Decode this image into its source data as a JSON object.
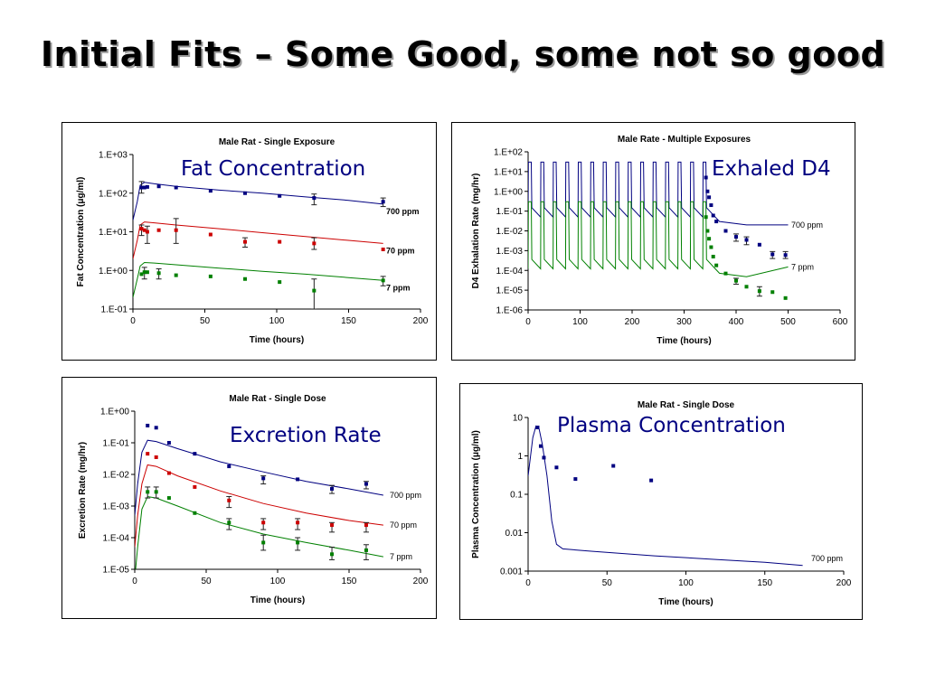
{
  "slide": {
    "title": "Initial Fits – Some Good, some not so good"
  },
  "overlays": {
    "fat": "Fat Concentration",
    "exhaled": "Exhaled D4",
    "excretion": "Excretion Rate",
    "plasma": "Plasma Concentration"
  },
  "chart_data": [
    {
      "id": "fat",
      "type": "scatter",
      "title": "Male Rat - Single Exposure",
      "xlabel": "Time (hours)",
      "ylabel": "Fat Concentration (μg/ml)",
      "xlim": [
        0,
        200
      ],
      "xticks": [
        0,
        50,
        100,
        150,
        200
      ],
      "ylog": true,
      "ylim": [
        0.1,
        1000
      ],
      "yticks": [
        0.1,
        1,
        10,
        100,
        1000
      ],
      "yticklabels": [
        "1.E-01",
        "1.E+00",
        "1.E+01",
        "1.E+02",
        "1.E+03"
      ],
      "series": [
        {
          "name": "700 ppm",
          "color": "#000080",
          "points": [
            [
              6,
              140
            ],
            [
              8,
              140
            ],
            [
              10,
              145
            ],
            [
              18,
              150
            ],
            [
              30,
              140
            ],
            [
              54,
              115
            ],
            [
              78,
              100
            ],
            [
              102,
              85
            ],
            [
              126,
              75
            ],
            [
              174,
              60
            ]
          ],
          "err": [
            [
              6,
              100,
              200
            ],
            [
              126,
              50,
              95
            ],
            [
              174,
              45,
              75
            ]
          ],
          "line": [
            [
              0,
              20
            ],
            [
              3,
              60
            ],
            [
              5,
              160
            ],
            [
              8,
              190
            ],
            [
              15,
              175
            ],
            [
              30,
              150
            ],
            [
              60,
              120
            ],
            [
              90,
              100
            ],
            [
              120,
              80
            ],
            [
              150,
              65
            ],
            [
              174,
              52
            ]
          ]
        },
        {
          "name": "70 ppm",
          "color": "#cc0000",
          "points": [
            [
              6,
              12
            ],
            [
              8,
              11
            ],
            [
              10,
              10
            ],
            [
              18,
              11
            ],
            [
              30,
              11
            ],
            [
              54,
              8.5
            ],
            [
              78,
              5.5
            ],
            [
              102,
              5.5
            ],
            [
              126,
              5
            ],
            [
              174,
              3.5
            ]
          ],
          "err": [
            [
              6,
              8,
              15
            ],
            [
              10,
              5,
              14
            ],
            [
              30,
              5,
              22
            ],
            [
              78,
              4,
              7
            ],
            [
              126,
              3.5,
              7
            ]
          ],
          "line": [
            [
              0,
              2
            ],
            [
              3,
              6
            ],
            [
              5,
              15
            ],
            [
              8,
              18
            ],
            [
              15,
              17
            ],
            [
              30,
              15
            ],
            [
              60,
              12
            ],
            [
              90,
              9.5
            ],
            [
              120,
              7.5
            ],
            [
              150,
              6
            ],
            [
              174,
              5
            ]
          ]
        },
        {
          "name": "7 ppm",
          "color": "#008000",
          "points": [
            [
              6,
              0.8
            ],
            [
              8,
              0.9
            ],
            [
              10,
              0.9
            ],
            [
              18,
              0.85
            ],
            [
              30,
              0.75
            ],
            [
              54,
              0.7
            ],
            [
              78,
              0.6
            ],
            [
              102,
              0.5
            ],
            [
              126,
              0.3
            ],
            [
              174,
              0.55
            ]
          ],
          "err": [
            [
              8,
              0.6,
              1.2
            ],
            [
              18,
              0.6,
              1.1
            ],
            [
              126,
              0.1,
              0.6
            ],
            [
              174,
              0.4,
              0.7
            ]
          ],
          "line": [
            [
              0,
              0.2
            ],
            [
              3,
              0.6
            ],
            [
              5,
              1.3
            ],
            [
              8,
              1.6
            ],
            [
              15,
              1.55
            ],
            [
              30,
              1.4
            ],
            [
              60,
              1.15
            ],
            [
              90,
              0.95
            ],
            [
              120,
              0.8
            ],
            [
              150,
              0.65
            ],
            [
              174,
              0.55
            ]
          ]
        }
      ]
    },
    {
      "id": "exhaled",
      "type": "scatter",
      "title": "Male Rate - Multiple Exposures",
      "xlabel": "Time (hours)",
      "ylabel": "D4 Exhalation Rate (mg/hr)",
      "xlim": [
        0,
        600
      ],
      "xticks": [
        0,
        100,
        200,
        300,
        400,
        500,
        600
      ],
      "ylog": true,
      "ylim": [
        1e-06,
        100
      ],
      "yticks": [
        1e-06,
        1e-05,
        0.0001,
        0.001,
        0.01,
        0.1,
        1,
        10,
        100
      ],
      "yticklabels": [
        "1.E-06",
        "1.E-05",
        "1.E-04",
        "1.E-03",
        "1.E-02",
        "1.E-01",
        "1.E+00",
        "1.E+01",
        "1.E+02"
      ],
      "pulses": {
        "start": 0,
        "period": 24,
        "duration": 6,
        "count": 15
      },
      "series": [
        {
          "name": "700 ppm",
          "color": "#000080",
          "low": 0.05,
          "high": 30,
          "tail_end": 0.02,
          "points": [
            [
              342,
              5
            ],
            [
              345,
              1
            ],
            [
              348,
              0.5
            ],
            [
              352,
              0.2
            ],
            [
              356,
              0.06
            ],
            [
              362,
              0.03
            ],
            [
              380,
              0.01
            ],
            [
              400,
              0.005
            ],
            [
              420,
              0.0035
            ],
            [
              445,
              0.002
            ],
            [
              470,
              0.00065
            ],
            [
              495,
              0.0006
            ]
          ],
          "err": [
            [
              400,
              0.003,
              0.007
            ],
            [
              420,
              0.002,
              0.005
            ],
            [
              470,
              0.0004,
              0.0009
            ],
            [
              495,
              0.0004,
              0.0009
            ]
          ]
        },
        {
          "name": "7 ppm",
          "color": "#008000",
          "low": 0.00012,
          "high": 0.3,
          "tail_end": 0.00015,
          "points": [
            [
              342,
              0.05
            ],
            [
              345,
              0.01
            ],
            [
              348,
              0.004
            ],
            [
              352,
              0.0015
            ],
            [
              356,
              0.0005
            ],
            [
              362,
              0.00018
            ],
            [
              380,
              7e-05
            ],
            [
              400,
              3e-05
            ],
            [
              420,
              1.5e-05
            ],
            [
              445,
              9e-06
            ],
            [
              470,
              8e-06
            ],
            [
              495,
              4e-06
            ]
          ],
          "err": [
            [
              400,
              2e-05,
              4e-05
            ],
            [
              445,
              5e-06,
              1.5e-05
            ]
          ]
        }
      ]
    },
    {
      "id": "excretion",
      "type": "scatter",
      "title": "Male Rat - Single Dose",
      "xlabel": "Time (hours)",
      "ylabel": "Excretion Rate (mg/hr)",
      "xlim": [
        0,
        200
      ],
      "xticks": [
        0,
        50,
        100,
        150,
        200
      ],
      "ylog": true,
      "ylim": [
        1e-05,
        1
      ],
      "yticks": [
        1e-05,
        0.0001,
        0.001,
        0.01,
        0.1,
        1
      ],
      "yticklabels": [
        "1.E-05",
        "1.E-04",
        "1.E-03",
        "1.E-02",
        "1.E-01",
        "1.E+00"
      ],
      "series": [
        {
          "name": "700 ppm",
          "color": "#000080",
          "points": [
            [
              9,
              0.35
            ],
            [
              15,
              0.3
            ],
            [
              24,
              0.1
            ],
            [
              42,
              0.045
            ],
            [
              66,
              0.018
            ],
            [
              90,
              0.0075
            ],
            [
              114,
              0.007
            ],
            [
              138,
              0.0035
            ],
            [
              162,
              0.005
            ]
          ],
          "err": [
            [
              90,
              0.005,
              0.009
            ],
            [
              138,
              0.0025,
              0.0045
            ],
            [
              162,
              0.0035,
              0.006
            ]
          ],
          "line": [
            [
              0,
              0.0005
            ],
            [
              2,
              0.005
            ],
            [
              5,
              0.05
            ],
            [
              9,
              0.12
            ],
            [
              15,
              0.11
            ],
            [
              30,
              0.065
            ],
            [
              60,
              0.025
            ],
            [
              90,
              0.012
            ],
            [
              120,
              0.006
            ],
            [
              150,
              0.0035
            ],
            [
              174,
              0.0022
            ]
          ]
        },
        {
          "name": "70 ppm",
          "color": "#cc0000",
          "points": [
            [
              9,
              0.045
            ],
            [
              15,
              0.035
            ],
            [
              24,
              0.011
            ],
            [
              42,
              0.004
            ],
            [
              66,
              0.0015
            ],
            [
              90,
              0.0003
            ],
            [
              114,
              0.0003
            ],
            [
              138,
              0.00025
            ],
            [
              162,
              0.00025
            ]
          ],
          "err": [
            [
              66,
              0.0009,
              0.002
            ],
            [
              90,
              0.00018,
              0.0004
            ],
            [
              114,
              0.00018,
              0.0004
            ],
            [
              138,
              0.00015,
              0.0003
            ],
            [
              162,
              0.00015,
              0.0003
            ]
          ],
          "line": [
            [
              0,
              5e-05
            ],
            [
              2,
              0.0005
            ],
            [
              5,
              0.005
            ],
            [
              9,
              0.02
            ],
            [
              15,
              0.018
            ],
            [
              30,
              0.009
            ],
            [
              60,
              0.003
            ],
            [
              90,
              0.0012
            ],
            [
              120,
              0.0006
            ],
            [
              150,
              0.00035
            ],
            [
              174,
              0.00025
            ]
          ]
        },
        {
          "name": "7 ppm",
          "color": "#008000",
          "points": [
            [
              9,
              0.0028
            ],
            [
              15,
              0.0028
            ],
            [
              24,
              0.0018
            ],
            [
              42,
              0.0006
            ],
            [
              66,
              0.0003
            ],
            [
              90,
              7e-05
            ],
            [
              114,
              7e-05
            ],
            [
              138,
              3e-05
            ],
            [
              162,
              4e-05
            ]
          ],
          "err": [
            [
              9,
              0.0018,
              0.004
            ],
            [
              15,
              0.0018,
              0.004
            ],
            [
              66,
              0.00018,
              0.0004
            ],
            [
              90,
              4e-05,
              0.00012
            ],
            [
              114,
              4e-05,
              0.0001
            ],
            [
              138,
              2e-05,
              5e-05
            ],
            [
              162,
              2e-05,
              6e-05
            ]
          ],
          "line": [
            [
              0,
              5e-06
            ],
            [
              2,
              5e-05
            ],
            [
              5,
              0.0008
            ],
            [
              9,
              0.002
            ],
            [
              15,
              0.0018
            ],
            [
              30,
              0.001
            ],
            [
              60,
              0.0003
            ],
            [
              90,
              0.00013
            ],
            [
              120,
              7e-05
            ],
            [
              150,
              4e-05
            ],
            [
              174,
              2.5e-05
            ]
          ]
        }
      ]
    },
    {
      "id": "plasma",
      "type": "scatter",
      "title": "Male Rat - Single Dose",
      "xlabel": "Time (hours)",
      "ylabel": "Plasma Concentration (μg/ml)",
      "xlim": [
        0,
        200
      ],
      "xticks": [
        0,
        50,
        100,
        150,
        200
      ],
      "ylog": true,
      "ylim": [
        0.001,
        10
      ],
      "yticks": [
        0.001,
        0.01,
        0.1,
        1,
        10
      ],
      "yticklabels": [
        "0.001",
        "0.01",
        "0.1",
        "1",
        "10"
      ],
      "series": [
        {
          "name": "700 ppm",
          "color": "#000080",
          "points": [
            [
              6,
              5.5
            ],
            [
              8,
              1.8
            ],
            [
              10,
              0.9
            ],
            [
              18,
              0.5
            ],
            [
              30,
              0.25
            ],
            [
              54,
              0.55
            ],
            [
              78,
              0.23
            ]
          ],
          "err": [],
          "line": [
            [
              0,
              0.3
            ],
            [
              3,
              3
            ],
            [
              5,
              6
            ],
            [
              7,
              5
            ],
            [
              9,
              2
            ],
            [
              12,
              0.3
            ],
            [
              15,
              0.02
            ],
            [
              18,
              0.005
            ],
            [
              22,
              0.0038
            ],
            [
              40,
              0.0033
            ],
            [
              80,
              0.0025
            ],
            [
              120,
              0.002
            ],
            [
              150,
              0.0017
            ],
            [
              174,
              0.0014
            ]
          ]
        }
      ]
    }
  ]
}
